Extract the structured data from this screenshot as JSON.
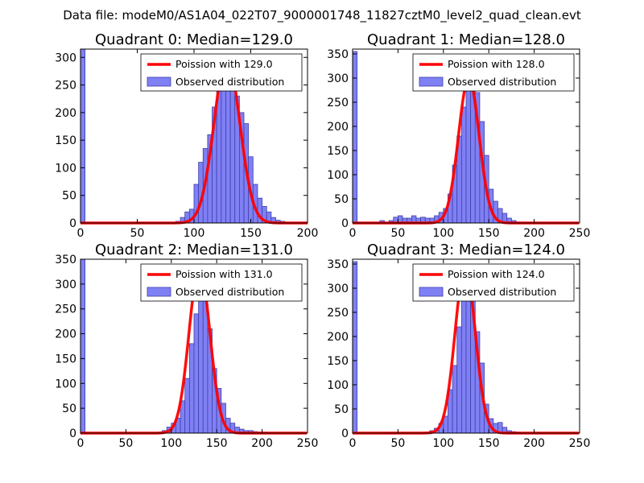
{
  "suptitle": "Data file: modeM0/AS1A04_022T07_9000001748_11827cztM0_level2_quad_clean.evt",
  "legend_labels": {
    "observed": "Observed distribution"
  },
  "colors": {
    "hist_fill": "#8080f5",
    "hist_edge": "#3f3fa8",
    "poisson": "#ff0000",
    "axes": "#000000"
  },
  "chart_data": [
    {
      "type": "bar",
      "title": "Quadrant 0: Median=129.0",
      "median": 129.0,
      "poisson_label": "Poission with 129.0",
      "xlim": [
        0,
        200
      ],
      "ylim": [
        0,
        315
      ],
      "xticks": [
        0,
        50,
        100,
        150,
        200
      ],
      "yticks": [
        0,
        50,
        100,
        150,
        200,
        250,
        300
      ],
      "bin_width": 4,
      "bins": [
        [
          0,
          315
        ],
        [
          84,
          3
        ],
        [
          88,
          10
        ],
        [
          92,
          20
        ],
        [
          96,
          25
        ],
        [
          100,
          70
        ],
        [
          104,
          110
        ],
        [
          108,
          135
        ],
        [
          112,
          160
        ],
        [
          116,
          210
        ],
        [
          120,
          260
        ],
        [
          124,
          285
        ],
        [
          128,
          290
        ],
        [
          132,
          265
        ],
        [
          136,
          230
        ],
        [
          140,
          200
        ],
        [
          144,
          180
        ],
        [
          148,
          120
        ],
        [
          152,
          70
        ],
        [
          156,
          45
        ],
        [
          160,
          30
        ],
        [
          164,
          20
        ],
        [
          168,
          10
        ],
        [
          172,
          5
        ],
        [
          176,
          3
        ]
      ],
      "poisson_peak": 300
    },
    {
      "type": "bar",
      "title": "Quadrant 1: Median=128.0",
      "median": 128.0,
      "poisson_label": "Poission with 128.0",
      "xlim": [
        0,
        250
      ],
      "ylim": [
        0,
        360
      ],
      "xticks": [
        0,
        50,
        100,
        150,
        200,
        250
      ],
      "yticks": [
        0,
        50,
        100,
        150,
        200,
        250,
        300,
        350
      ],
      "bin_width": 5,
      "bins": [
        [
          0,
          355
        ],
        [
          30,
          5
        ],
        [
          40,
          5
        ],
        [
          45,
          12
        ],
        [
          50,
          15
        ],
        [
          55,
          10
        ],
        [
          60,
          10
        ],
        [
          65,
          15
        ],
        [
          70,
          10
        ],
        [
          75,
          12
        ],
        [
          80,
          10
        ],
        [
          85,
          10
        ],
        [
          90,
          15
        ],
        [
          95,
          22
        ],
        [
          100,
          30
        ],
        [
          105,
          60
        ],
        [
          110,
          120
        ],
        [
          115,
          180
        ],
        [
          120,
          240
        ],
        [
          125,
          300
        ],
        [
          130,
          320
        ],
        [
          135,
          270
        ],
        [
          140,
          210
        ],
        [
          145,
          140
        ],
        [
          150,
          70
        ],
        [
          155,
          45
        ],
        [
          160,
          30
        ],
        [
          165,
          20
        ],
        [
          170,
          10
        ],
        [
          175,
          5
        ],
        [
          180,
          2
        ]
      ],
      "poisson_peak": 300
    },
    {
      "type": "bar",
      "title": "Quadrant 2: Median=131.0",
      "median": 131.0,
      "poisson_label": "Poission with 131.0",
      "xlim": [
        0,
        250
      ],
      "ylim": [
        0,
        350
      ],
      "xticks": [
        0,
        50,
        100,
        150,
        200,
        250
      ],
      "yticks": [
        0,
        50,
        100,
        150,
        200,
        250,
        300,
        350
      ],
      "bin_width": 5,
      "bins": [
        [
          0,
          350
        ],
        [
          90,
          5
        ],
        [
          95,
          12
        ],
        [
          100,
          20
        ],
        [
          105,
          30
        ],
        [
          110,
          65
        ],
        [
          115,
          110
        ],
        [
          120,
          180
        ],
        [
          125,
          240
        ],
        [
          130,
          340
        ],
        [
          135,
          300
        ],
        [
          140,
          210
        ],
        [
          145,
          130
        ],
        [
          150,
          90
        ],
        [
          155,
          60
        ],
        [
          160,
          30
        ],
        [
          165,
          20
        ],
        [
          170,
          12
        ],
        [
          175,
          8
        ],
        [
          180,
          5
        ],
        [
          185,
          5
        ],
        [
          190,
          3
        ],
        [
          195,
          2
        ],
        [
          200,
          2
        ]
      ],
      "poisson_peak": 335
    },
    {
      "type": "bar",
      "title": "Quadrant 3: Median=124.0",
      "median": 124.0,
      "poisson_label": "Poission with 124.0",
      "xlim": [
        0,
        250
      ],
      "ylim": [
        0,
        360
      ],
      "xticks": [
        0,
        50,
        100,
        150,
        200,
        250
      ],
      "yticks": [
        0,
        50,
        100,
        150,
        200,
        250,
        300,
        350
      ],
      "bin_width": 5,
      "bins": [
        [
          0,
          355
        ],
        [
          85,
          5
        ],
        [
          90,
          10
        ],
        [
          95,
          20
        ],
        [
          100,
          35
        ],
        [
          105,
          90
        ],
        [
          110,
          140
        ],
        [
          115,
          220
        ],
        [
          120,
          310
        ],
        [
          125,
          330
        ],
        [
          130,
          280
        ],
        [
          135,
          210
        ],
        [
          140,
          145
        ],
        [
          145,
          60
        ],
        [
          150,
          30
        ],
        [
          155,
          20
        ],
        [
          160,
          22
        ],
        [
          165,
          12
        ],
        [
          170,
          5
        ],
        [
          175,
          3
        ],
        [
          180,
          2
        ]
      ],
      "poisson_peak": 345
    }
  ]
}
